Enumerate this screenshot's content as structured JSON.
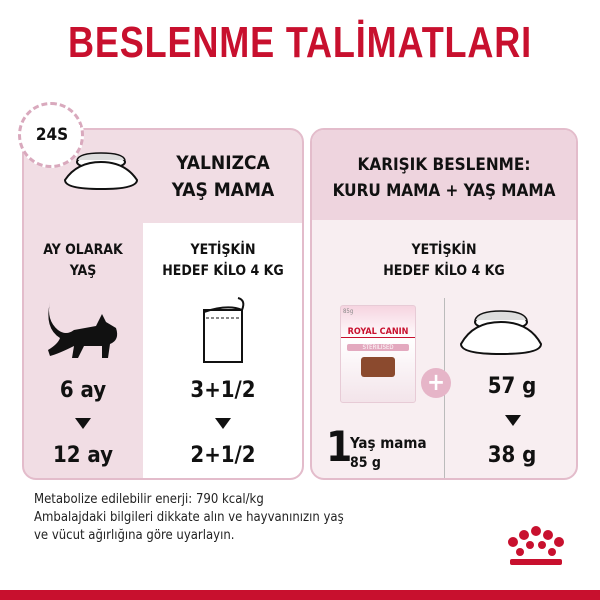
{
  "title": "BESLENME TALİMATLARI",
  "left_panel": {
    "badge": "24S",
    "heading": [
      "YALNIZCA",
      "YAŞ MAMA"
    ],
    "age_col": {
      "header": [
        "AY OLARAK",
        "YAŞ"
      ],
      "from": "6 ay",
      "to": "12 ay"
    },
    "amount_col": {
      "header": [
        "YETİŞKİN",
        "HEDEF KİLO 4 KG"
      ],
      "from": "3+1/2",
      "to": "2+1/2"
    }
  },
  "right_panel": {
    "heading": [
      "KARIŞIK BESLENME:",
      "KURU MAMA + YAŞ MAMA"
    ],
    "subheader": [
      "YETİŞKİN",
      "HEDEF KİLO 4 KG"
    ],
    "pouch": {
      "brand": "ROYAL CANIN",
      "variant": "STERILISED",
      "weight_label": "85g",
      "count": "1",
      "label": "Yaş mama",
      "weight": "85 g"
    },
    "plus": "+",
    "dry_from": "57 g",
    "dry_to": "38 g"
  },
  "footer": [
    "Metabolize edilebilir enerji: 790 kcal/kg",
    "Ambalajdaki bilgileri dikkate alın ve hayvanınızın yaş",
    "ve vücut ağırlığına göre uyarlayın."
  ],
  "colors": {
    "brand_red": "#c8102e",
    "pink_header": "#eed4de",
    "pink_panel": "#f1dde4"
  }
}
